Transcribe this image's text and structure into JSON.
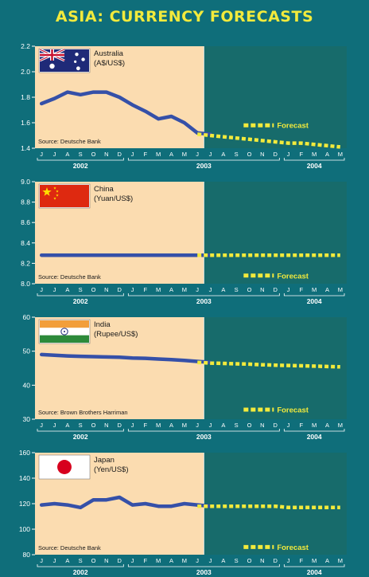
{
  "title": "ASIA: CURRENCY FORECASTS",
  "colors": {
    "background": "#0f6e7a",
    "history_panel": "#fbdcb0",
    "forecast_panel": "#176b6b",
    "line": "#3550a8",
    "forecast_dash": "#f2ea3c",
    "title_text": "#f2ea3c"
  },
  "x_axis": {
    "months": [
      "J",
      "J",
      "A",
      "S",
      "O",
      "N",
      "D",
      "J",
      "F",
      "M",
      "A",
      "M",
      "J",
      "J",
      "A",
      "S",
      "O",
      "N",
      "D",
      "J",
      "F",
      "M",
      "A",
      "M"
    ],
    "years": [
      {
        "label": "2002",
        "start": 0,
        "end": 6
      },
      {
        "label": "2003",
        "start": 7,
        "end": 18
      },
      {
        "label": "2004",
        "start": 19,
        "end": 23
      }
    ],
    "forecast_start_index": 13
  },
  "chart_data": [
    {
      "type": "line",
      "country": "Australia",
      "unit": "(A$/US$)",
      "flag": "australia-flag",
      "source": "Source: Deutsche Bank",
      "forecast_label": "Forecast",
      "forecast_label_at": 1.58,
      "ylim": [
        1.4,
        2.2
      ],
      "yticks": [
        "2.2",
        "2.0",
        "1.8",
        "1.6",
        "1.4"
      ],
      "history": [
        1.75,
        1.79,
        1.84,
        1.82,
        1.84,
        1.84,
        1.8,
        1.74,
        1.69,
        1.63,
        1.65,
        1.6,
        1.52,
        1.51
      ],
      "forecast": [
        1.51,
        1.5,
        1.49,
        1.48,
        1.47,
        1.46,
        1.45,
        1.44,
        1.44,
        1.43,
        1.42,
        1.41
      ]
    },
    {
      "type": "line",
      "country": "China",
      "unit": "(Yuan/US$)",
      "flag": "china-flag",
      "source": "Source: Deutsche Bank",
      "forecast_label": "Forecast",
      "forecast_label_at": 8.08,
      "ylim": [
        8.0,
        9.0
      ],
      "yticks": [
        "9.0",
        "8.8",
        "8.6",
        "8.4",
        "8.2",
        "8.0"
      ],
      "history": [
        8.28,
        8.28,
        8.28,
        8.28,
        8.28,
        8.28,
        8.28,
        8.28,
        8.28,
        8.28,
        8.28,
        8.28,
        8.28,
        8.28
      ],
      "forecast": [
        8.28,
        8.28,
        8.28,
        8.28,
        8.28,
        8.28,
        8.28,
        8.28,
        8.28,
        8.28,
        8.28,
        8.28
      ]
    },
    {
      "type": "line",
      "country": "India",
      "unit": "(Rupee/US$)",
      "flag": "india-flag",
      "source": "Source: Brown Brothers Harriman",
      "forecast_label": "Forecast",
      "forecast_label_at": 32.8,
      "ylim": [
        30,
        60
      ],
      "yticks": [
        "60",
        "50",
        "40",
        "30"
      ],
      "history": [
        49.0,
        48.8,
        48.6,
        48.5,
        48.4,
        48.3,
        48.2,
        48.0,
        47.9,
        47.7,
        47.5,
        47.3,
        47.0,
        46.7
      ],
      "forecast": [
        46.7,
        46.5,
        46.4,
        46.3,
        46.2,
        46.0,
        45.9,
        45.8,
        45.7,
        45.6,
        45.5,
        45.4
      ]
    },
    {
      "type": "line",
      "country": "Japan",
      "unit": "(Yen/US$)",
      "flag": "japan-flag",
      "source": "Source: Deutsche Bank",
      "forecast_label": "Forecast",
      "forecast_label_at": 86,
      "ylim": [
        80,
        160
      ],
      "yticks": [
        "160",
        "140",
        "120",
        "100",
        "80"
      ],
      "history": [
        119,
        120,
        119,
        117,
        123,
        123,
        125,
        119,
        120,
        118,
        118,
        120,
        119,
        118
      ],
      "forecast": [
        118,
        118,
        118,
        118,
        118,
        118,
        118,
        117,
        117,
        117,
        117,
        117
      ]
    }
  ]
}
